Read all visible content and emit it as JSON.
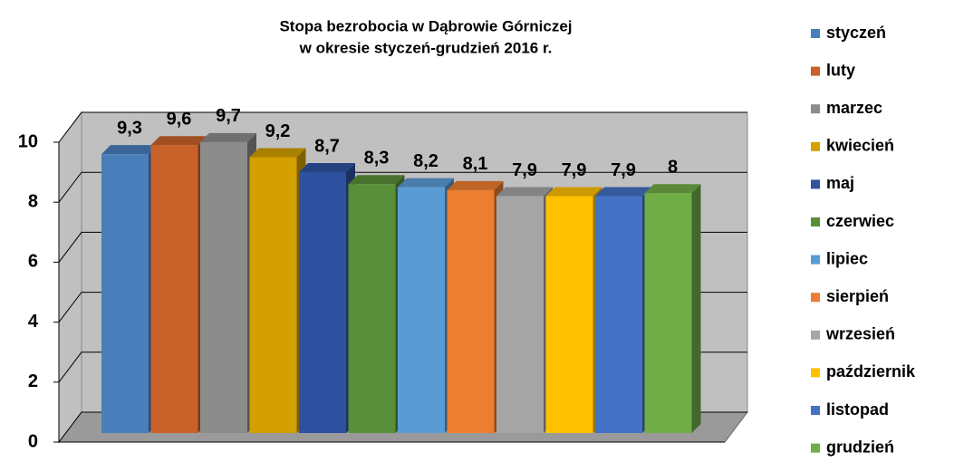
{
  "chart_data": {
    "type": "bar3d",
    "title": [
      "Stopa bezrobocia w Dąbrowie Górniczej",
      "w okresie styczeń-grudzień 2016 r."
    ],
    "series": [
      {
        "name": "styczeń",
        "color": "#4a7ebb",
        "values": [
          9.3
        ],
        "value_labels": [
          "9,3"
        ]
      },
      {
        "name": "luty",
        "color": "#c8622a",
        "values": [
          9.6
        ],
        "value_labels": [
          "9,6"
        ]
      },
      {
        "name": "marzec",
        "color": "#8c8c8c",
        "values": [
          9.7
        ],
        "value_labels": [
          "9,7"
        ]
      },
      {
        "name": "kwiecień",
        "color": "#d4a000",
        "values": [
          9.2
        ],
        "value_labels": [
          "9,2"
        ]
      },
      {
        "name": "maj",
        "color": "#2f52a0",
        "values": [
          8.7
        ],
        "value_labels": [
          "8,7"
        ]
      },
      {
        "name": "czerwiec",
        "color": "#5a8f3a",
        "values": [
          8.3
        ],
        "value_labels": [
          "8,3"
        ]
      },
      {
        "name": "lipiec",
        "color": "#5b9bd5",
        "values": [
          8.2
        ],
        "value_labels": [
          "8,2"
        ]
      },
      {
        "name": "sierpień",
        "color": "#ed7d31",
        "values": [
          8.1
        ],
        "value_labels": [
          "8,1"
        ]
      },
      {
        "name": "wrzesień",
        "color": "#a5a5a5",
        "values": [
          7.9
        ],
        "value_labels": [
          "7,9"
        ]
      },
      {
        "name": "październik",
        "color": "#ffc000",
        "values": [
          7.9
        ],
        "value_labels": [
          "7,9"
        ]
      },
      {
        "name": "listopad",
        "color": "#4472c4",
        "values": [
          7.9
        ],
        "value_labels": [
          "7,9"
        ]
      },
      {
        "name": "grudzień",
        "color": "#70ad47",
        "values": [
          8
        ],
        "value_labels": [
          "8"
        ]
      }
    ],
    "ylim": [
      0,
      10
    ],
    "yticks": [
      0,
      2,
      4,
      6,
      8,
      10
    ],
    "grid": true,
    "legend": "right"
  }
}
